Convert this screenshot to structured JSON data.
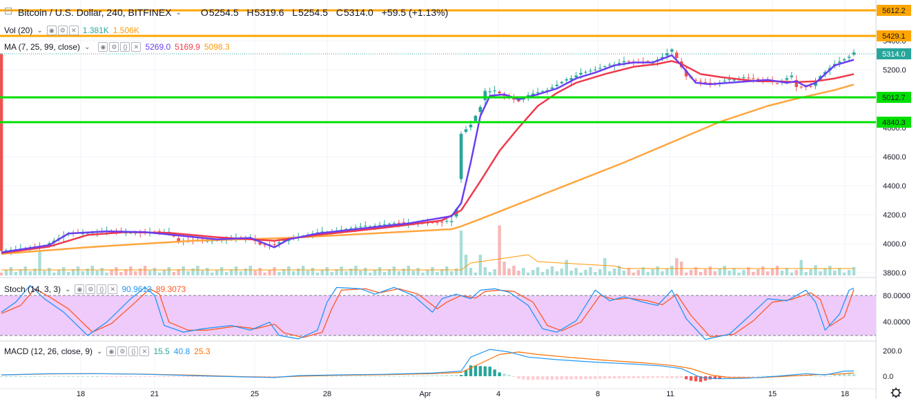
{
  "header": {
    "symbol_title": "Bitcoin / U.S. Dollar, 240, BITFINEX",
    "ohlc": {
      "o_label": "O",
      "o": "5254.5",
      "h_label": "H",
      "h": "5319.6",
      "l_label": "L",
      "l": "5254.5",
      "c_label": "C",
      "c": "5314.0",
      "change": "+59.5 (+1.13%)"
    }
  },
  "vol_legend": {
    "label": "Vol (20)",
    "value1": "1.381K",
    "value2": "1.506K"
  },
  "ma_legend": {
    "label": "MA (7, 25, 99, close)",
    "v7": "5269.0",
    "v25": "5169.9",
    "v99": "5098.3"
  },
  "stoch_legend": {
    "label": "Stoch (14, 3, 3)",
    "k": "90.9613",
    "d": "89.3073"
  },
  "macd_legend": {
    "label": "MACD (12, 26, close, 9)",
    "hist": "15.5",
    "macd": "40.8",
    "signal": "25.3"
  },
  "colors": {
    "up": "#26a69a",
    "down": "#ef5350",
    "ma7": "#6a3df0",
    "ma25": "#f0394b",
    "ma99": "#ffa53d",
    "hline_orange": "#ffa500",
    "hline_green": "#00e000",
    "stoch_k": "#2196f3",
    "stoch_d": "#ff5722",
    "stoch_band": "#eecbfa",
    "macd": "#2196f3",
    "signal": "#ff6d00"
  },
  "chart_data": [
    {
      "type": "candlestick",
      "title": "Bitcoin / U.S. Dollar, 240, BITFINEX",
      "y_range": [
        3780,
        5640
      ],
      "y_ticks": [
        "3800.0",
        "4000.0",
        "4200.0",
        "4400.0",
        "4600.0",
        "4800.0",
        "5000.0",
        "5200.0",
        "5400.0"
      ],
      "x_ticks": [
        "18",
        "21",
        "25",
        "28",
        "Apr",
        "4",
        "8",
        "11",
        "15",
        "18"
      ],
      "horizontal_levels": [
        {
          "value": "5612.2",
          "color": "orange"
        },
        {
          "value": "5429.1",
          "color": "orange"
        },
        {
          "value": "5012.7",
          "color": "green"
        },
        {
          "value": "4840.3",
          "color": "green"
        }
      ],
      "last_price": "5314.0",
      "close_path": [
        [
          0,
          3955
        ],
        [
          8,
          3975
        ],
        [
          14,
          4070
        ],
        [
          22,
          4085
        ],
        [
          30,
          4075
        ],
        [
          35,
          4085
        ],
        [
          37,
          4020
        ],
        [
          45,
          4025
        ],
        [
          52,
          4045
        ],
        [
          54,
          3995
        ],
        [
          57,
          3990
        ],
        [
          60,
          4035
        ],
        [
          66,
          4075
        ],
        [
          74,
          4110
        ],
        [
          80,
          4135
        ],
        [
          85,
          4145
        ],
        [
          92,
          4145
        ],
        [
          94,
          4160
        ],
        [
          95,
          4240
        ],
        [
          96,
          4760
        ],
        [
          98,
          4820
        ],
        [
          100,
          4940
        ],
        [
          101,
          5050
        ],
        [
          103,
          5060
        ],
        [
          105,
          5020
        ],
        [
          108,
          4980
        ],
        [
          111,
          5040
        ],
        [
          114,
          5060
        ],
        [
          118,
          5130
        ],
        [
          121,
          5180
        ],
        [
          124,
          5200
        ],
        [
          127,
          5230
        ],
        [
          130,
          5260
        ],
        [
          133,
          5250
        ],
        [
          136,
          5255
        ],
        [
          138,
          5290
        ],
        [
          140,
          5340
        ],
        [
          141,
          5280
        ],
        [
          143,
          5150
        ],
        [
          146,
          5120
        ],
        [
          149,
          5100
        ],
        [
          152,
          5130
        ],
        [
          155,
          5150
        ],
        [
          158,
          5130
        ],
        [
          162,
          5110
        ],
        [
          165,
          5160
        ],
        [
          166,
          5080
        ],
        [
          169,
          5080
        ],
        [
          171,
          5160
        ],
        [
          174,
          5240
        ],
        [
          177,
          5285
        ],
        [
          178,
          5314
        ]
      ],
      "ma7_path": [
        [
          0,
          3940
        ],
        [
          10,
          3990
        ],
        [
          14,
          4070
        ],
        [
          22,
          4085
        ],
        [
          30,
          4080
        ],
        [
          36,
          4060
        ],
        [
          45,
          4030
        ],
        [
          52,
          4040
        ],
        [
          57,
          3975
        ],
        [
          60,
          4030
        ],
        [
          66,
          4070
        ],
        [
          74,
          4100
        ],
        [
          85,
          4140
        ],
        [
          94,
          4190
        ],
        [
          96,
          4280
        ],
        [
          98,
          4560
        ],
        [
          100,
          4880
        ],
        [
          102,
          5020
        ],
        [
          105,
          5030
        ],
        [
          108,
          4995
        ],
        [
          112,
          5030
        ],
        [
          116,
          5070
        ],
        [
          120,
          5140
        ],
        [
          124,
          5180
        ],
        [
          128,
          5230
        ],
        [
          132,
          5250
        ],
        [
          136,
          5250
        ],
        [
          140,
          5300
        ],
        [
          142,
          5230
        ],
        [
          145,
          5110
        ],
        [
          148,
          5100
        ],
        [
          152,
          5110
        ],
        [
          156,
          5120
        ],
        [
          160,
          5130
        ],
        [
          164,
          5110
        ],
        [
          166,
          5120
        ],
        [
          168,
          5085
        ],
        [
          170,
          5110
        ],
        [
          172,
          5170
        ],
        [
          174,
          5230
        ],
        [
          178,
          5269
        ]
      ],
      "ma25_path": [
        [
          0,
          3935
        ],
        [
          10,
          3980
        ],
        [
          18,
          4060
        ],
        [
          26,
          4080
        ],
        [
          35,
          4075
        ],
        [
          45,
          4045
        ],
        [
          57,
          4020
        ],
        [
          66,
          4060
        ],
        [
          80,
          4110
        ],
        [
          92,
          4160
        ],
        [
          96,
          4230
        ],
        [
          100,
          4430
        ],
        [
          104,
          4640
        ],
        [
          108,
          4800
        ],
        [
          112,
          4950
        ],
        [
          116,
          5040
        ],
        [
          120,
          5110
        ],
        [
          126,
          5170
        ],
        [
          132,
          5220
        ],
        [
          137,
          5240
        ],
        [
          140,
          5260
        ],
        [
          142,
          5240
        ],
        [
          146,
          5170
        ],
        [
          150,
          5150
        ],
        [
          154,
          5135
        ],
        [
          158,
          5120
        ],
        [
          162,
          5120
        ],
        [
          166,
          5115
        ],
        [
          170,
          5120
        ],
        [
          174,
          5140
        ],
        [
          178,
          5170
        ]
      ],
      "ma99_path": [
        [
          0,
          3930
        ],
        [
          20,
          3980
        ],
        [
          40,
          4020
        ],
        [
          60,
          4040
        ],
        [
          80,
          4075
        ],
        [
          94,
          4100
        ],
        [
          96,
          4120
        ],
        [
          100,
          4170
        ],
        [
          110,
          4300
        ],
        [
          120,
          4430
        ],
        [
          130,
          4560
        ],
        [
          140,
          4700
        ],
        [
          150,
          4840
        ],
        [
          160,
          4950
        ],
        [
          166,
          5000
        ],
        [
          170,
          5030
        ],
        [
          174,
          5060
        ],
        [
          178,
          5098
        ]
      ],
      "volume_spikes": [
        [
          8,
          140
        ],
        [
          96,
          260
        ],
        [
          97,
          120
        ],
        [
          100,
          120
        ],
        [
          104,
          290
        ],
        [
          105,
          80
        ],
        [
          118,
          90
        ],
        [
          126,
          100
        ],
        [
          141,
          100
        ],
        [
          142,
          80
        ],
        [
          167,
          90
        ],
        [
          170,
          60
        ]
      ]
    },
    {
      "type": "line",
      "title": "Stoch (14, 3, 3)",
      "y_ticks": [
        "80.0000",
        "40.0000"
      ],
      "k_path": [
        [
          0,
          55
        ],
        [
          3,
          70
        ],
        [
          6,
          95
        ],
        [
          9,
          75
        ],
        [
          13,
          55
        ],
        [
          18,
          20
        ],
        [
          22,
          40
        ],
        [
          27,
          75
        ],
        [
          30,
          92
        ],
        [
          32,
          80
        ],
        [
          34,
          35
        ],
        [
          38,
          25
        ],
        [
          42,
          30
        ],
        [
          48,
          35
        ],
        [
          52,
          28
        ],
        [
          56,
          40
        ],
        [
          58,
          20
        ],
        [
          62,
          15
        ],
        [
          66,
          28
        ],
        [
          68,
          70
        ],
        [
          70,
          92
        ],
        [
          75,
          90
        ],
        [
          78,
          82
        ],
        [
          82,
          92
        ],
        [
          86,
          80
        ],
        [
          90,
          55
        ],
        [
          92,
          75
        ],
        [
          95,
          82
        ],
        [
          98,
          75
        ],
        [
          100,
          88
        ],
        [
          103,
          90
        ],
        [
          106,
          85
        ],
        [
          110,
          65
        ],
        [
          113,
          30
        ],
        [
          116,
          25
        ],
        [
          120,
          42
        ],
        [
          124,
          88
        ],
        [
          127,
          72
        ],
        [
          130,
          78
        ],
        [
          134,
          70
        ],
        [
          137,
          65
        ],
        [
          140,
          88
        ],
        [
          143,
          45
        ],
        [
          147,
          14
        ],
        [
          152,
          22
        ],
        [
          156,
          48
        ],
        [
          160,
          75
        ],
        [
          164,
          72
        ],
        [
          168,
          88
        ],
        [
          170,
          70
        ],
        [
          172,
          28
        ],
        [
          175,
          52
        ],
        [
          177,
          88
        ],
        [
          178,
          91
        ]
      ],
      "d_path": [
        [
          0,
          53
        ],
        [
          4,
          65
        ],
        [
          7,
          90
        ],
        [
          10,
          78
        ],
        [
          14,
          60
        ],
        [
          19,
          25
        ],
        [
          23,
          38
        ],
        [
          28,
          70
        ],
        [
          31,
          90
        ],
        [
          33,
          82
        ],
        [
          35,
          40
        ],
        [
          39,
          28
        ],
        [
          43,
          28
        ],
        [
          49,
          34
        ],
        [
          53,
          30
        ],
        [
          57,
          37
        ],
        [
          59,
          24
        ],
        [
          63,
          17
        ],
        [
          67,
          25
        ],
        [
          69,
          60
        ],
        [
          71,
          88
        ],
        [
          76,
          90
        ],
        [
          79,
          84
        ],
        [
          83,
          90
        ],
        [
          87,
          82
        ],
        [
          91,
          60
        ],
        [
          93,
          70
        ],
        [
          96,
          80
        ],
        [
          99,
          76
        ],
        [
          101,
          86
        ],
        [
          104,
          88
        ],
        [
          107,
          86
        ],
        [
          111,
          70
        ],
        [
          114,
          35
        ],
        [
          117,
          27
        ],
        [
          121,
          40
        ],
        [
          125,
          80
        ],
        [
          128,
          74
        ],
        [
          131,
          76
        ],
        [
          135,
          72
        ],
        [
          138,
          66
        ],
        [
          141,
          82
        ],
        [
          144,
          50
        ],
        [
          148,
          18
        ],
        [
          153,
          22
        ],
        [
          157,
          42
        ],
        [
          161,
          70
        ],
        [
          165,
          74
        ],
        [
          169,
          84
        ],
        [
          171,
          74
        ],
        [
          173,
          34
        ],
        [
          176,
          48
        ],
        [
          178,
          89
        ]
      ]
    },
    {
      "type": "line",
      "title": "MACD (12, 26, close, 9)",
      "y_ticks": [
        "200.0",
        "0.0"
      ],
      "macd_path": [
        [
          0,
          10
        ],
        [
          10,
          20
        ],
        [
          20,
          20
        ],
        [
          30,
          15
        ],
        [
          40,
          5
        ],
        [
          50,
          -5
        ],
        [
          57,
          -10
        ],
        [
          62,
          5
        ],
        [
          70,
          10
        ],
        [
          80,
          15
        ],
        [
          90,
          25
        ],
        [
          96,
          40
        ],
        [
          98,
          150
        ],
        [
          102,
          210
        ],
        [
          106,
          190
        ],
        [
          110,
          150
        ],
        [
          116,
          130
        ],
        [
          124,
          110
        ],
        [
          132,
          95
        ],
        [
          138,
          80
        ],
        [
          142,
          60
        ],
        [
          146,
          -10
        ],
        [
          150,
          -20
        ],
        [
          156,
          -15
        ],
        [
          162,
          0
        ],
        [
          168,
          20
        ],
        [
          172,
          10
        ],
        [
          176,
          40
        ],
        [
          178,
          41
        ]
      ],
      "signal_path": [
        [
          0,
          10
        ],
        [
          10,
          18
        ],
        [
          20,
          20
        ],
        [
          30,
          16
        ],
        [
          40,
          8
        ],
        [
          50,
          -3
        ],
        [
          57,
          -8
        ],
        [
          62,
          0
        ],
        [
          70,
          7
        ],
        [
          80,
          12
        ],
        [
          90,
          20
        ],
        [
          96,
          30
        ],
        [
          100,
          100
        ],
        [
          104,
          170
        ],
        [
          108,
          190
        ],
        [
          112,
          170
        ],
        [
          118,
          150
        ],
        [
          126,
          125
        ],
        [
          134,
          105
        ],
        [
          140,
          85
        ],
        [
          144,
          60
        ],
        [
          148,
          10
        ],
        [
          152,
          -10
        ],
        [
          158,
          -12
        ],
        [
          164,
          0
        ],
        [
          170,
          12
        ],
        [
          174,
          15
        ],
        [
          178,
          25
        ]
      ]
    }
  ]
}
